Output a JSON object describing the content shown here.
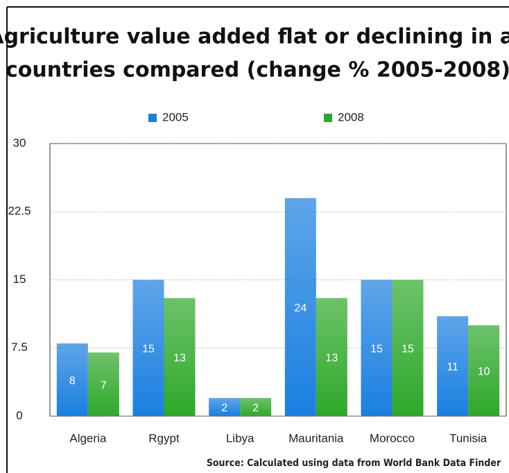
{
  "chart_data": {
    "type": "bar",
    "title": [
      "Agriculture value added flat or declining in all",
      "countries compared (change % 2005-2008)"
    ],
    "categories": [
      "Algeria",
      "Rgypt",
      "Libya",
      "Mauritania",
      "Morocco",
      "Tunisia"
    ],
    "series": [
      {
        "name": "2005",
        "color": "#1a7fe0",
        "values": [
          8,
          15,
          2,
          24,
          15,
          11
        ]
      },
      {
        "name": "2008",
        "color": "#2ea82a",
        "values": [
          7,
          13,
          2,
          13,
          15,
          10
        ]
      }
    ],
    "ylim": [
      0,
      30
    ],
    "yticks": [
      0,
      7.5,
      15,
      22.5,
      30
    ],
    "grid": true,
    "legend": "top",
    "source": "Source:  Calculated using data from World Bank Data Finder"
  }
}
